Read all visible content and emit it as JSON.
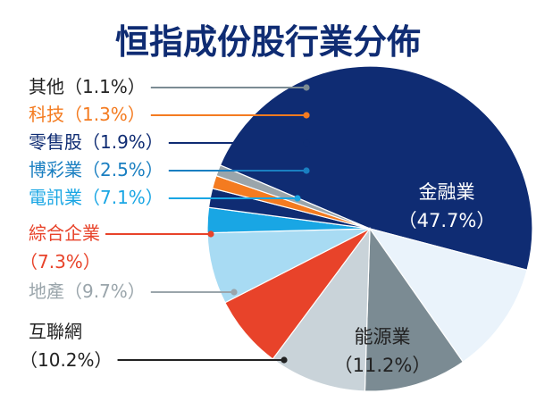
{
  "chart_data": {
    "type": "pie",
    "title": "恒指成份股行業分佈",
    "slices": [
      {
        "label": "金融業",
        "pct_label": "（47.7%）",
        "value": 47.7,
        "color": "#0f2c73"
      },
      {
        "label": "能源業",
        "pct_label": "（11.2%）",
        "value": 11.2,
        "color": "#eaf3fb"
      },
      {
        "label": "互聯網",
        "pct_label": "（10.2%）",
        "value": 10.2,
        "color": "#7b8b93"
      },
      {
        "label": "地產",
        "pct_label": "（9.7%）",
        "value": 9.7,
        "color": "#c9d3d9"
      },
      {
        "label": "綜合企業",
        "pct_label": "（7.3%）",
        "value": 7.3,
        "color": "#e8432a"
      },
      {
        "label": "電訊業",
        "pct_label": "（7.1%）",
        "value": 7.1,
        "color": "#a8dbf3"
      },
      {
        "label": "博彩業",
        "pct_label": "（2.5%）",
        "value": 2.5,
        "color": "#19a6e4"
      },
      {
        "label": "零售股",
        "pct_label": "（1.9%）",
        "value": 1.9,
        "color": "#0f2c73"
      },
      {
        "label": "科技",
        "pct_label": "（1.3%）",
        "value": 1.3,
        "color": "#f47b20"
      },
      {
        "label": "其他",
        "pct_label": "（1.1%）",
        "value": 1.1,
        "color": "#9aa5ab"
      }
    ],
    "label_colors": {
      "其他": "#222222",
      "科技": "#f47b20",
      "零售股": "#0f2c73",
      "博彩業": "#1a7fc1",
      "電訊業": "#19a6e4",
      "綜合企業": "#e8432a",
      "地產": "#9aa5ab",
      "互聯網": "#222222",
      "金融業": "#ffffff",
      "能源業": "#222222"
    },
    "title_color": "#0f2c73"
  }
}
